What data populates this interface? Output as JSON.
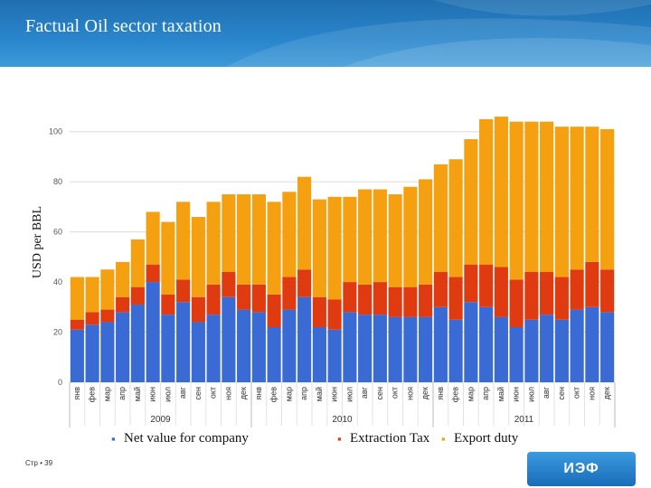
{
  "page": {
    "title": "Factual Oil sector taxation",
    "page_number": "Стр • 39",
    "logo_text": "ИЭФ"
  },
  "colors": {
    "net_value": "#3a6bd4",
    "extraction_tax": "#e03a10",
    "export_duty": "#f4a011",
    "header": "#2a86cc"
  },
  "chart_data": {
    "type": "bar",
    "stacked": true,
    "ylabel": "USD per BBL",
    "ylim": [
      0,
      100
    ],
    "yticks": [
      0,
      20,
      40,
      60,
      80,
      100
    ],
    "grid": true,
    "legend_position": "bottom",
    "categories": [
      "янв",
      "фев",
      "мар",
      "апр",
      "май",
      "июн",
      "июл",
      "авг",
      "сен",
      "окт",
      "ноя",
      "дек",
      "янв",
      "фев",
      "мар",
      "апр",
      "май",
      "июн",
      "июл",
      "авг",
      "сен",
      "окт",
      "ноя",
      "дек",
      "янв",
      "фев",
      "мар",
      "апр",
      "май",
      "июн",
      "июл",
      "авг",
      "сен",
      "окт",
      "ноя",
      "дек"
    ],
    "year_labels": [
      {
        "label": "2009",
        "start": 0,
        "end": 11
      },
      {
        "label": "2010",
        "start": 12,
        "end": 23
      },
      {
        "label": "2011",
        "start": 24,
        "end": 35
      }
    ],
    "series": [
      {
        "name": "Net value for company",
        "color": "#3a6bd4",
        "values": [
          21,
          23,
          24,
          28,
          31,
          40,
          27,
          32,
          24,
          27,
          34,
          29,
          28,
          22,
          29,
          34,
          22,
          21,
          28,
          27,
          27,
          26,
          26,
          26,
          30,
          25,
          32,
          30,
          26,
          22,
          25,
          27,
          25,
          29,
          30,
          28
        ]
      },
      {
        "name": "Extraction Tax",
        "color": "#e03a10",
        "values": [
          4,
          5,
          5,
          6,
          7,
          7,
          8,
          9,
          10,
          12,
          10,
          10,
          11,
          13,
          13,
          11,
          12,
          12,
          12,
          12,
          13,
          12,
          12,
          13,
          14,
          17,
          15,
          17,
          20,
          19,
          19,
          17,
          17,
          16,
          18,
          17
        ]
      },
      {
        "name": "Export duty",
        "color": "#f4a011",
        "values": [
          17,
          14,
          16,
          14,
          19,
          21,
          29,
          31,
          32,
          33,
          31,
          36,
          36,
          37,
          34,
          37,
          39,
          41,
          34,
          38,
          37,
          37,
          40,
          42,
          43,
          47,
          50,
          58,
          60,
          63,
          60,
          60,
          60,
          57,
          54,
          56
        ]
      }
    ]
  }
}
